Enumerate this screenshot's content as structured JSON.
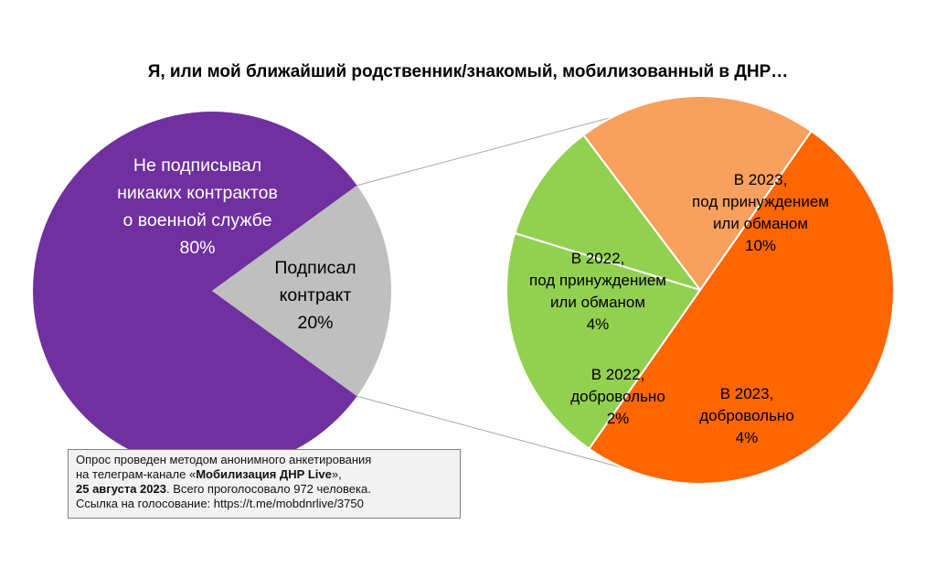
{
  "chart_data": {
    "type": "pie",
    "title": "Я, или мой ближайший родственник/знакомый, мобилизованный в ДНР…",
    "main_pie": {
      "slices": [
        {
          "label_lines": [
            "Не подписывал",
            "никаких контрактов",
            "о военной службе",
            "80%"
          ],
          "value": 80,
          "color": "#7030a0",
          "label_color": "#ffffff"
        },
        {
          "label_lines": [
            "Подписал",
            "контракт",
            "20%"
          ],
          "value": 20,
          "color": "#bfbfbf",
          "label_color": "#000000"
        }
      ]
    },
    "breakdown_pie": {
      "slices": [
        {
          "label_lines": [
            "В 2023,",
            "под принуждением",
            "или обманом",
            "10%"
          ],
          "value": 10,
          "color": "#ff6600",
          "label_color": "#000000"
        },
        {
          "label_lines": [
            "В 2023,",
            "добровольно",
            "4%"
          ],
          "value": 4,
          "color": "#92d050",
          "label_color": "#000000"
        },
        {
          "label_lines": [
            "В 2022,",
            "добровольно",
            "2%"
          ],
          "value": 2,
          "color": "#92d050",
          "label_color": "#000000"
        },
        {
          "label_lines": [
            "В 2022,",
            "под принуждением",
            "или обманом",
            "4%"
          ],
          "value": 4,
          "color": "#f8a05e",
          "label_color": "#000000"
        }
      ]
    }
  },
  "note": {
    "line1": "Опрос проведен методом анонимного анкетирования",
    "line2_a": "на телеграм-канале «",
    "line2_b": "Мобилизация ДНР Live",
    "line2_c": "»,",
    "line3_a": "25 августа 2023",
    "line3_b": ". Всего проголосовало 972 человека.",
    "line4": "Ссылка на голосование: https://t.me/mobdnrlive/3750"
  }
}
